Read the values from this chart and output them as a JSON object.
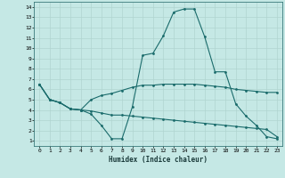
{
  "xlabel": "Humidex (Indice chaleur)",
  "bg_color": "#c5e8e5",
  "grid_color": "#b0d4d0",
  "line_color": "#1a6b6b",
  "xlim": [
    -0.5,
    23.5
  ],
  "ylim": [
    0.5,
    14.5
  ],
  "xticks": [
    0,
    1,
    2,
    3,
    4,
    5,
    6,
    7,
    8,
    9,
    10,
    11,
    12,
    13,
    14,
    15,
    16,
    17,
    18,
    19,
    20,
    21,
    22,
    23
  ],
  "yticks": [
    1,
    2,
    3,
    4,
    5,
    6,
    7,
    8,
    9,
    10,
    11,
    12,
    13,
    14
  ],
  "line1_x": [
    0,
    1,
    2,
    3,
    4,
    5,
    6,
    7,
    8,
    9,
    10,
    11,
    12,
    13,
    14,
    15,
    16,
    17,
    18,
    19,
    20,
    21,
    22,
    23
  ],
  "line1_y": [
    6.5,
    5.0,
    4.7,
    4.1,
    4.0,
    5.0,
    5.4,
    5.6,
    5.9,
    6.2,
    6.4,
    6.4,
    6.5,
    6.5,
    6.5,
    6.5,
    6.4,
    6.3,
    6.2,
    6.0,
    5.9,
    5.8,
    5.7,
    5.7
  ],
  "line2_x": [
    0,
    1,
    2,
    3,
    4,
    5,
    6,
    7,
    8,
    9,
    10,
    11,
    12,
    13,
    14,
    15,
    16,
    17,
    18,
    19,
    20,
    21,
    22,
    23
  ],
  "line2_y": [
    6.5,
    5.0,
    4.7,
    4.1,
    4.0,
    3.6,
    2.5,
    1.2,
    1.2,
    4.3,
    9.3,
    9.5,
    11.2,
    13.5,
    13.8,
    13.8,
    11.1,
    7.7,
    7.7,
    4.6,
    3.4,
    2.5,
    1.4,
    1.2
  ],
  "line3_x": [
    0,
    1,
    2,
    3,
    4,
    5,
    6,
    7,
    8,
    9,
    10,
    11,
    12,
    13,
    14,
    15,
    16,
    17,
    18,
    19,
    20,
    21,
    22,
    23
  ],
  "line3_y": [
    6.5,
    5.0,
    4.7,
    4.1,
    4.0,
    3.9,
    3.7,
    3.5,
    3.5,
    3.4,
    3.3,
    3.2,
    3.1,
    3.0,
    2.9,
    2.8,
    2.7,
    2.6,
    2.5,
    2.4,
    2.3,
    2.2,
    2.1,
    1.4
  ]
}
